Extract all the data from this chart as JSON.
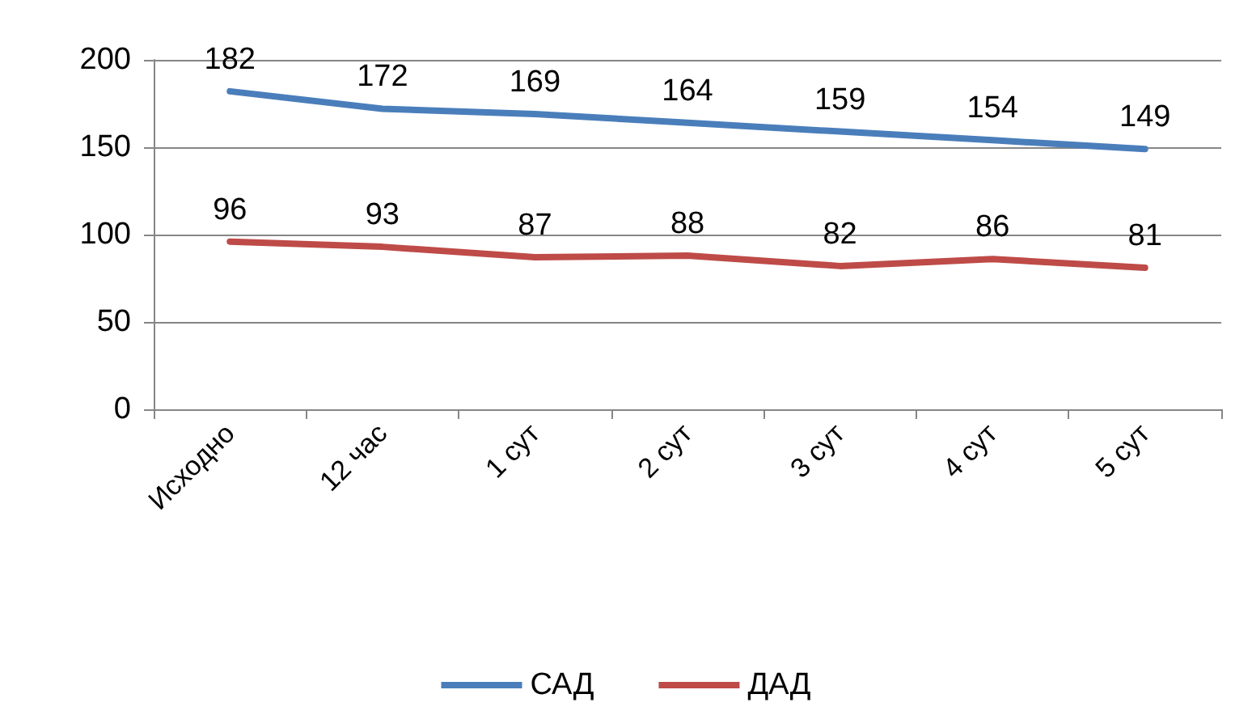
{
  "chart_data": {
    "type": "line",
    "categories": [
      "Исходно",
      "12 час",
      "1 сут",
      "2 сут",
      "3 сут",
      "4 сут",
      "5 сут"
    ],
    "series": [
      {
        "name": "САД",
        "color": "#4a7ebb",
        "values": [
          182,
          172,
          169,
          164,
          159,
          154,
          149
        ]
      },
      {
        "name": "ДАД",
        "color": "#be4b48",
        "values": [
          96,
          93,
          87,
          88,
          82,
          86,
          81
        ]
      }
    ],
    "ylim": [
      0,
      200
    ],
    "yticks": [
      0,
      50,
      100,
      150,
      200
    ],
    "grid": "y",
    "legend": "bottom",
    "data_labels": true,
    "marker": "none",
    "line_style": "solid"
  }
}
